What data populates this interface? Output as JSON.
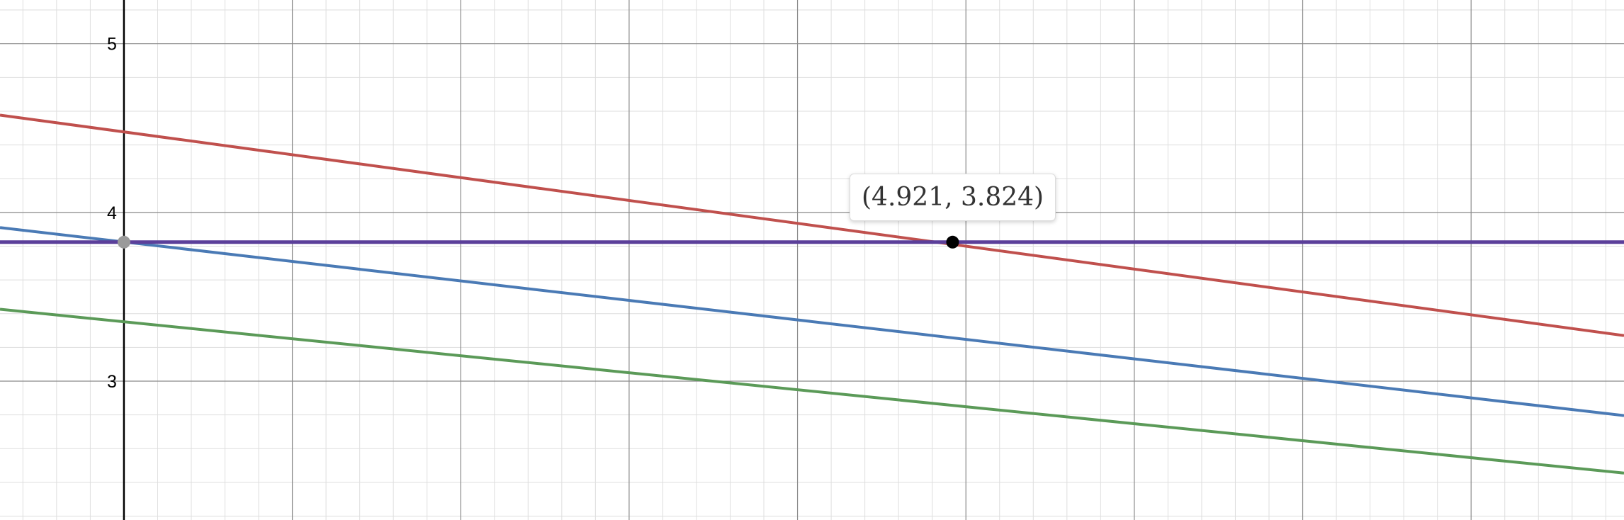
{
  "chart_data": {
    "type": "line",
    "xlim": [
      -0.736,
      8.908
    ],
    "ylim": [
      2.177,
      5.259
    ],
    "grid": true,
    "major_y_ticks": [
      3,
      4,
      5
    ],
    "tick_labels": [
      "3",
      "4",
      "5"
    ],
    "series": [
      {
        "name": "red line",
        "color": "#c0504d",
        "points": [
          [
            -0.736,
            4.577
          ],
          [
            8.908,
            3.27
          ]
        ]
      },
      {
        "name": "blue line",
        "color": "#4a7ab5",
        "points": [
          [
            -0.736,
            3.91
          ],
          [
            8.908,
            2.796
          ]
        ]
      },
      {
        "name": "green line",
        "color": "#5b9a58",
        "points": [
          [
            -0.736,
            3.426
          ],
          [
            8.908,
            2.455
          ]
        ]
      },
      {
        "name": "purple line",
        "color": "#5b3f9a",
        "points": [
          [
            -0.736,
            3.824
          ],
          [
            8.908,
            3.824
          ]
        ]
      }
    ],
    "points": [
      {
        "name": "y-intercept point",
        "x": 0,
        "y": 3.824,
        "color": "#9a9a9a"
      },
      {
        "name": "intersection point",
        "x": 4.921,
        "y": 3.824,
        "color": "#000000",
        "label": "(4.921, 3.824)"
      }
    ]
  }
}
